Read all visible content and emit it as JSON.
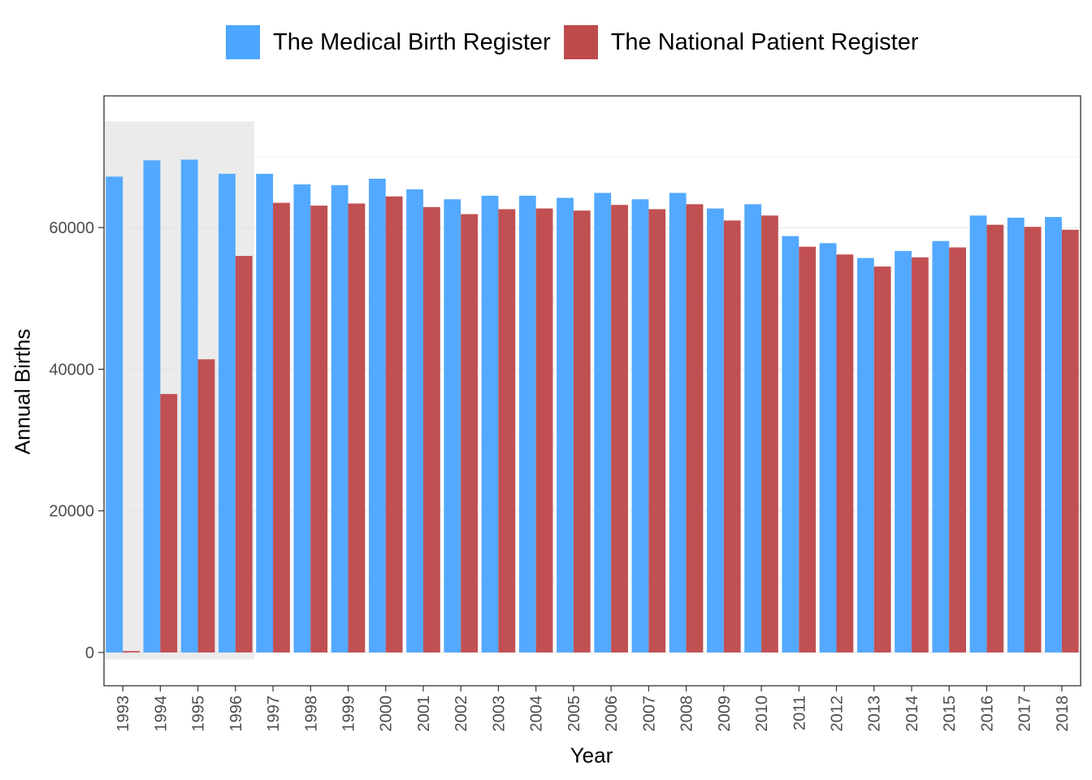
{
  "chart_data": {
    "type": "bar",
    "xlabel": "Year",
    "ylabel": "Annual Births",
    "ylim": [
      -4700,
      78600
    ],
    "yticks": [
      0,
      20000,
      40000,
      60000
    ],
    "grid": true,
    "legend_position": "top",
    "shaded_region": {
      "from": "1993",
      "to": "1996",
      "color": "#e0e0e0"
    },
    "categories": [
      "1993",
      "1994",
      "1995",
      "1996",
      "1997",
      "1998",
      "1999",
      "2000",
      "2001",
      "2002",
      "2003",
      "2004",
      "2005",
      "2006",
      "2007",
      "2008",
      "2009",
      "2010",
      "2011",
      "2012",
      "2013",
      "2014",
      "2015",
      "2016",
      "2017",
      "2018"
    ],
    "series": [
      {
        "name": "The Medical Birth Register",
        "color": "#4da6ff",
        "values": [
          67200,
          69500,
          69600,
          67600,
          67600,
          66100,
          66000,
          66900,
          65400,
          64000,
          64500,
          64500,
          64200,
          64900,
          64000,
          64900,
          62700,
          63300,
          58800,
          57800,
          55700,
          56700,
          58100,
          61700,
          61400,
          61500
        ]
      },
      {
        "name": "The National Patient Register",
        "color": "#bf4a4c",
        "values": [
          200,
          36500,
          41400,
          56000,
          63500,
          63100,
          63400,
          64400,
          62900,
          61900,
          62600,
          62700,
          62400,
          63200,
          62600,
          63300,
          61000,
          61700,
          57300,
          56200,
          54500,
          55800,
          57200,
          60400,
          60100,
          59700
        ]
      }
    ]
  }
}
